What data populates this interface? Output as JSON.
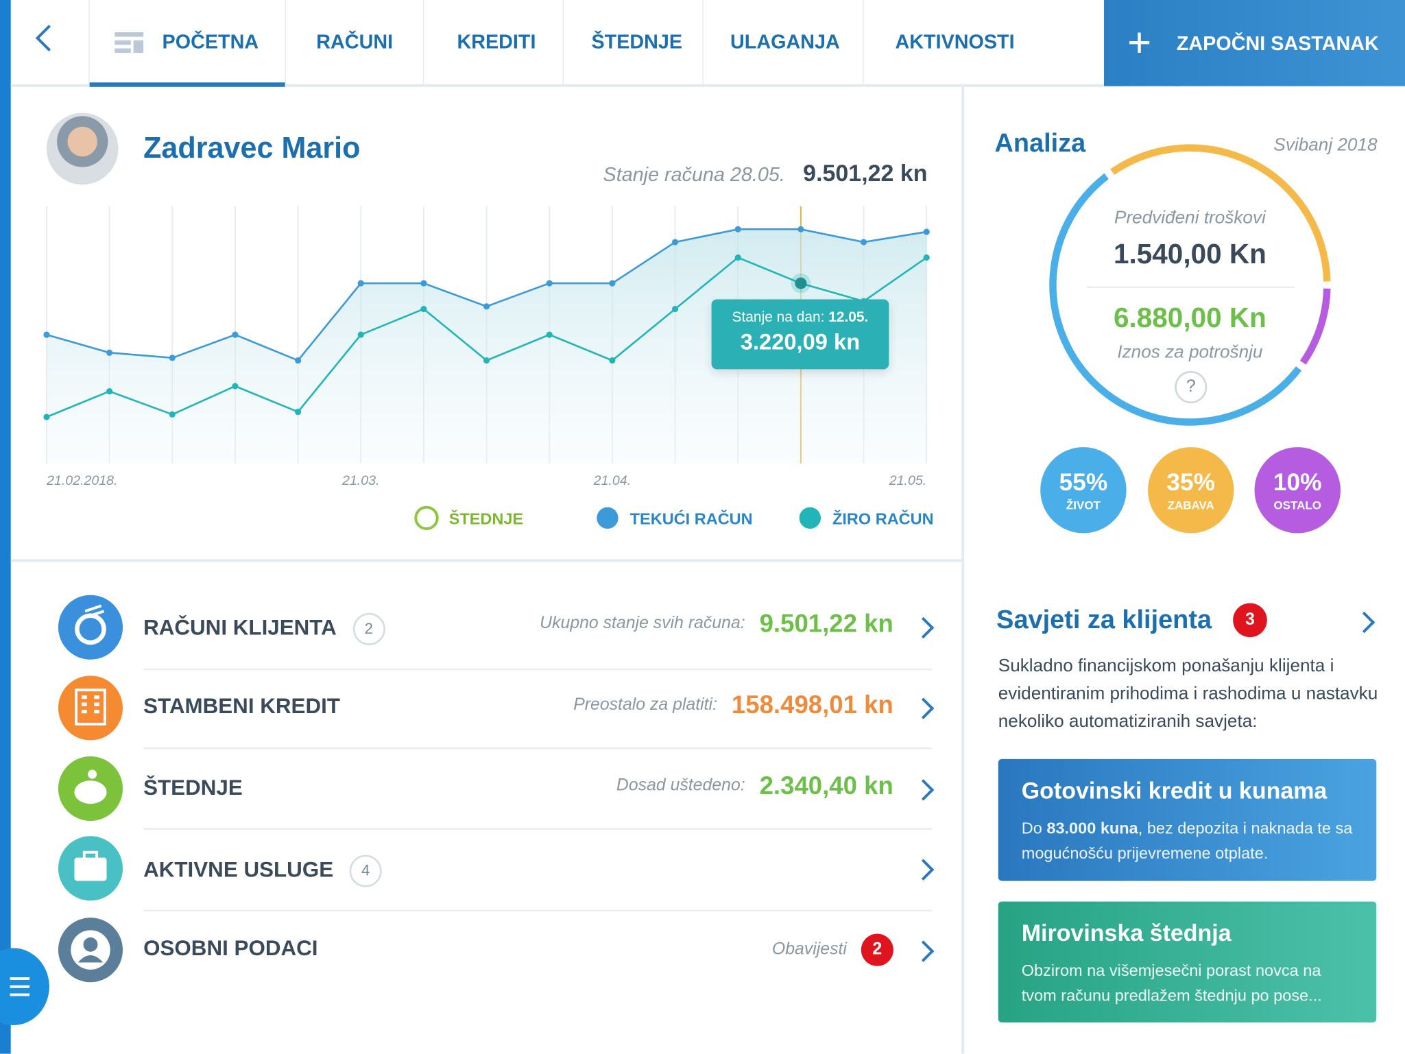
{
  "nav": {
    "items": [
      "POČETNA",
      "RAČUNI",
      "KREDITI",
      "ŠTEDNJE",
      "ULAGANJA",
      "AKTIVNOSTI"
    ],
    "action": "ZAPOČNI SASTANAK"
  },
  "profile": {
    "name": "Zadravec Mario",
    "balance_label": "Stanje računa 28.05.",
    "balance": "9.501,22 kn"
  },
  "chart_data": [
    {
      "type": "line",
      "categories": [
        "21.02.2018.",
        null,
        null,
        null,
        null,
        "21.03.",
        null,
        null,
        null,
        "21.04.",
        null,
        null,
        null,
        null,
        "21.05."
      ],
      "series": [
        {
          "name": "ŠTEDNJE",
          "color": "#8cc63f",
          "values": [
            null,
            null,
            null,
            null,
            null,
            null,
            null,
            null,
            null,
            null,
            null,
            null,
            null,
            null,
            null
          ]
        },
        {
          "name": "TEKUĆI RAČUN",
          "color": "#3d9ad8",
          "values": [
            50,
            43,
            41,
            50,
            40,
            70,
            70,
            61,
            70,
            70,
            86,
            91,
            91,
            86,
            90
          ]
        },
        {
          "name": "ŽIRO RAČUN",
          "color": "#22b5b8",
          "values": [
            18,
            28,
            19,
            30,
            20,
            50,
            60,
            40,
            50,
            40,
            60,
            80,
            70,
            63,
            80
          ]
        }
      ],
      "ylim": [
        0,
        100
      ],
      "grid": true,
      "tooltip": {
        "label": "Stanje na dan:",
        "date": "12.05.",
        "value": "3.220,09 kn"
      }
    },
    {
      "type": "pie",
      "categories": [
        "ŽIVOT",
        "ZABAVA",
        "OSTALO"
      ],
      "values": [
        55,
        35,
        10
      ],
      "value_labels": [
        "55%",
        "35%",
        "10%"
      ],
      "colors": [
        "#4aaee8",
        "#f5b94a",
        "#b65ce0"
      ]
    }
  ],
  "analysis": {
    "title": "Analiza",
    "period": "Svibanj 2018",
    "planned_label": "Predviđeni troškovi",
    "planned": "1.540,00 Kn",
    "spend": "6.880,00 Kn",
    "spend_label": "Iznos za potrošnju",
    "help": "?"
  },
  "accounts": [
    {
      "title": "RAČUNI KLIJENTA",
      "count": 2,
      "label": "Ukupno stanje svih računa:",
      "amount": "9.501,22 kn"
    },
    {
      "title": "STAMBENI KREDIT",
      "label": "Preostalo za platiti:",
      "amount": "158.498,01 kn"
    },
    {
      "title": "ŠTEDNJE",
      "label": "Dosad uštedeno:",
      "amount": "2.340,40 kn"
    },
    {
      "title": "AKTIVNE USLUGE",
      "count": 4
    },
    {
      "title": "OSOBNI PODACI",
      "label": "Obavijesti",
      "badge": 2
    }
  ],
  "tips": {
    "title": "Savjeti za klijenta",
    "count": 3,
    "text": "Sukladno financijskom ponašanju klijenta i evidentiranim prihodima i rashodima u nastavku nekoliko automatiziranih savjeta:",
    "cards": [
      {
        "title": "Gotovinski kredit u kunama",
        "text": [
          "Do ",
          "83.000 kuna",
          ", bez depozita i naknada te sa mogućnošću prijevremene otplate."
        ]
      },
      {
        "title": "Mirovinska štednja",
        "text": [
          "Obzirom na višemjesečni porast novca na tvom računu predlažem štednju po pose..."
        ]
      }
    ]
  }
}
